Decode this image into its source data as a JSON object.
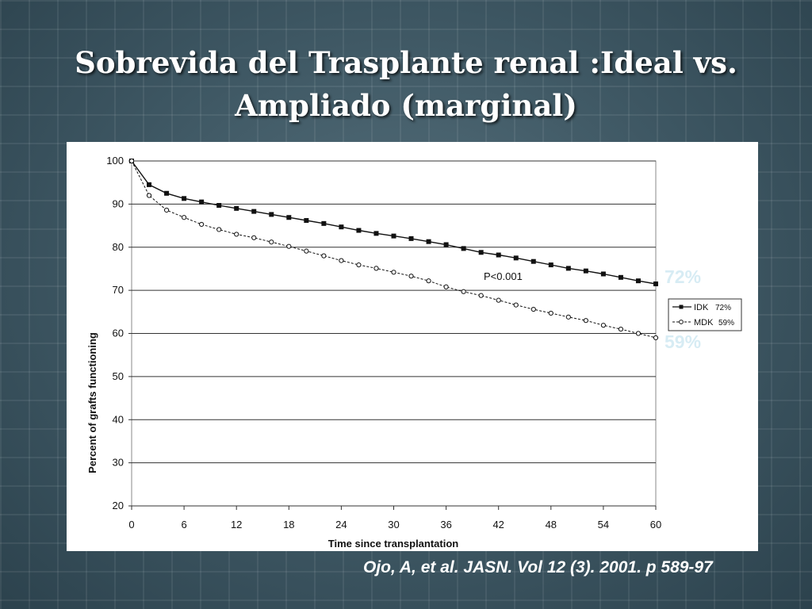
{
  "slide": {
    "title_line1": "Sobrevida del Trasplante renal :Ideal vs.",
    "title_line2": "Ampliado (marginal)",
    "citation": "Ojo, A, et al. JASN. Vol 12 (3). 2001. p 589-97",
    "callout_idk": "72%",
    "callout_mdk": "59%",
    "callout_color": "#d7ecf4"
  },
  "chart_data": {
    "type": "line",
    "title": "",
    "xlabel": "Time since transplantation",
    "ylabel": "Percent of grafts functioning",
    "xlim": [
      0,
      60
    ],
    "ylim": [
      20,
      100
    ],
    "x_ticks": [
      0,
      6,
      12,
      18,
      24,
      30,
      36,
      42,
      48,
      54,
      60
    ],
    "y_ticks": [
      20,
      30,
      40,
      50,
      60,
      70,
      80,
      90,
      100
    ],
    "grid": "horizontal",
    "annotation": "P<0.001",
    "legend_position": "right",
    "series": [
      {
        "name": "IDK",
        "legend_value": "72%",
        "marker": "filled-square",
        "x": [
          0,
          2,
          4,
          6,
          8,
          10,
          12,
          14,
          16,
          18,
          20,
          22,
          24,
          26,
          28,
          30,
          32,
          34,
          36,
          38,
          40,
          42,
          44,
          46,
          48,
          50,
          52,
          54,
          56,
          58,
          60
        ],
        "values": [
          100,
          94.5,
          92.5,
          91.3,
          90.5,
          89.7,
          89.0,
          88.3,
          87.6,
          86.9,
          86.2,
          85.5,
          84.7,
          83.9,
          83.2,
          82.6,
          82.0,
          81.3,
          80.6,
          79.7,
          78.8,
          78.2,
          77.5,
          76.7,
          75.9,
          75.1,
          74.5,
          73.8,
          73.0,
          72.2,
          71.5
        ]
      },
      {
        "name": "MDK",
        "legend_value": "59%",
        "marker": "open-circle",
        "x": [
          0,
          2,
          4,
          6,
          8,
          10,
          12,
          14,
          16,
          18,
          20,
          22,
          24,
          26,
          28,
          30,
          32,
          34,
          36,
          38,
          40,
          42,
          44,
          46,
          48,
          50,
          52,
          54,
          56,
          58,
          60
        ],
        "values": [
          100,
          92.0,
          88.6,
          86.9,
          85.3,
          84.1,
          83.0,
          82.2,
          81.2,
          80.2,
          79.1,
          78.0,
          76.9,
          75.9,
          75.1,
          74.2,
          73.3,
          72.2,
          70.8,
          69.7,
          68.8,
          67.7,
          66.6,
          65.6,
          64.7,
          63.8,
          63.0,
          61.9,
          61.0,
          60.0,
          59.0
        ]
      }
    ]
  }
}
